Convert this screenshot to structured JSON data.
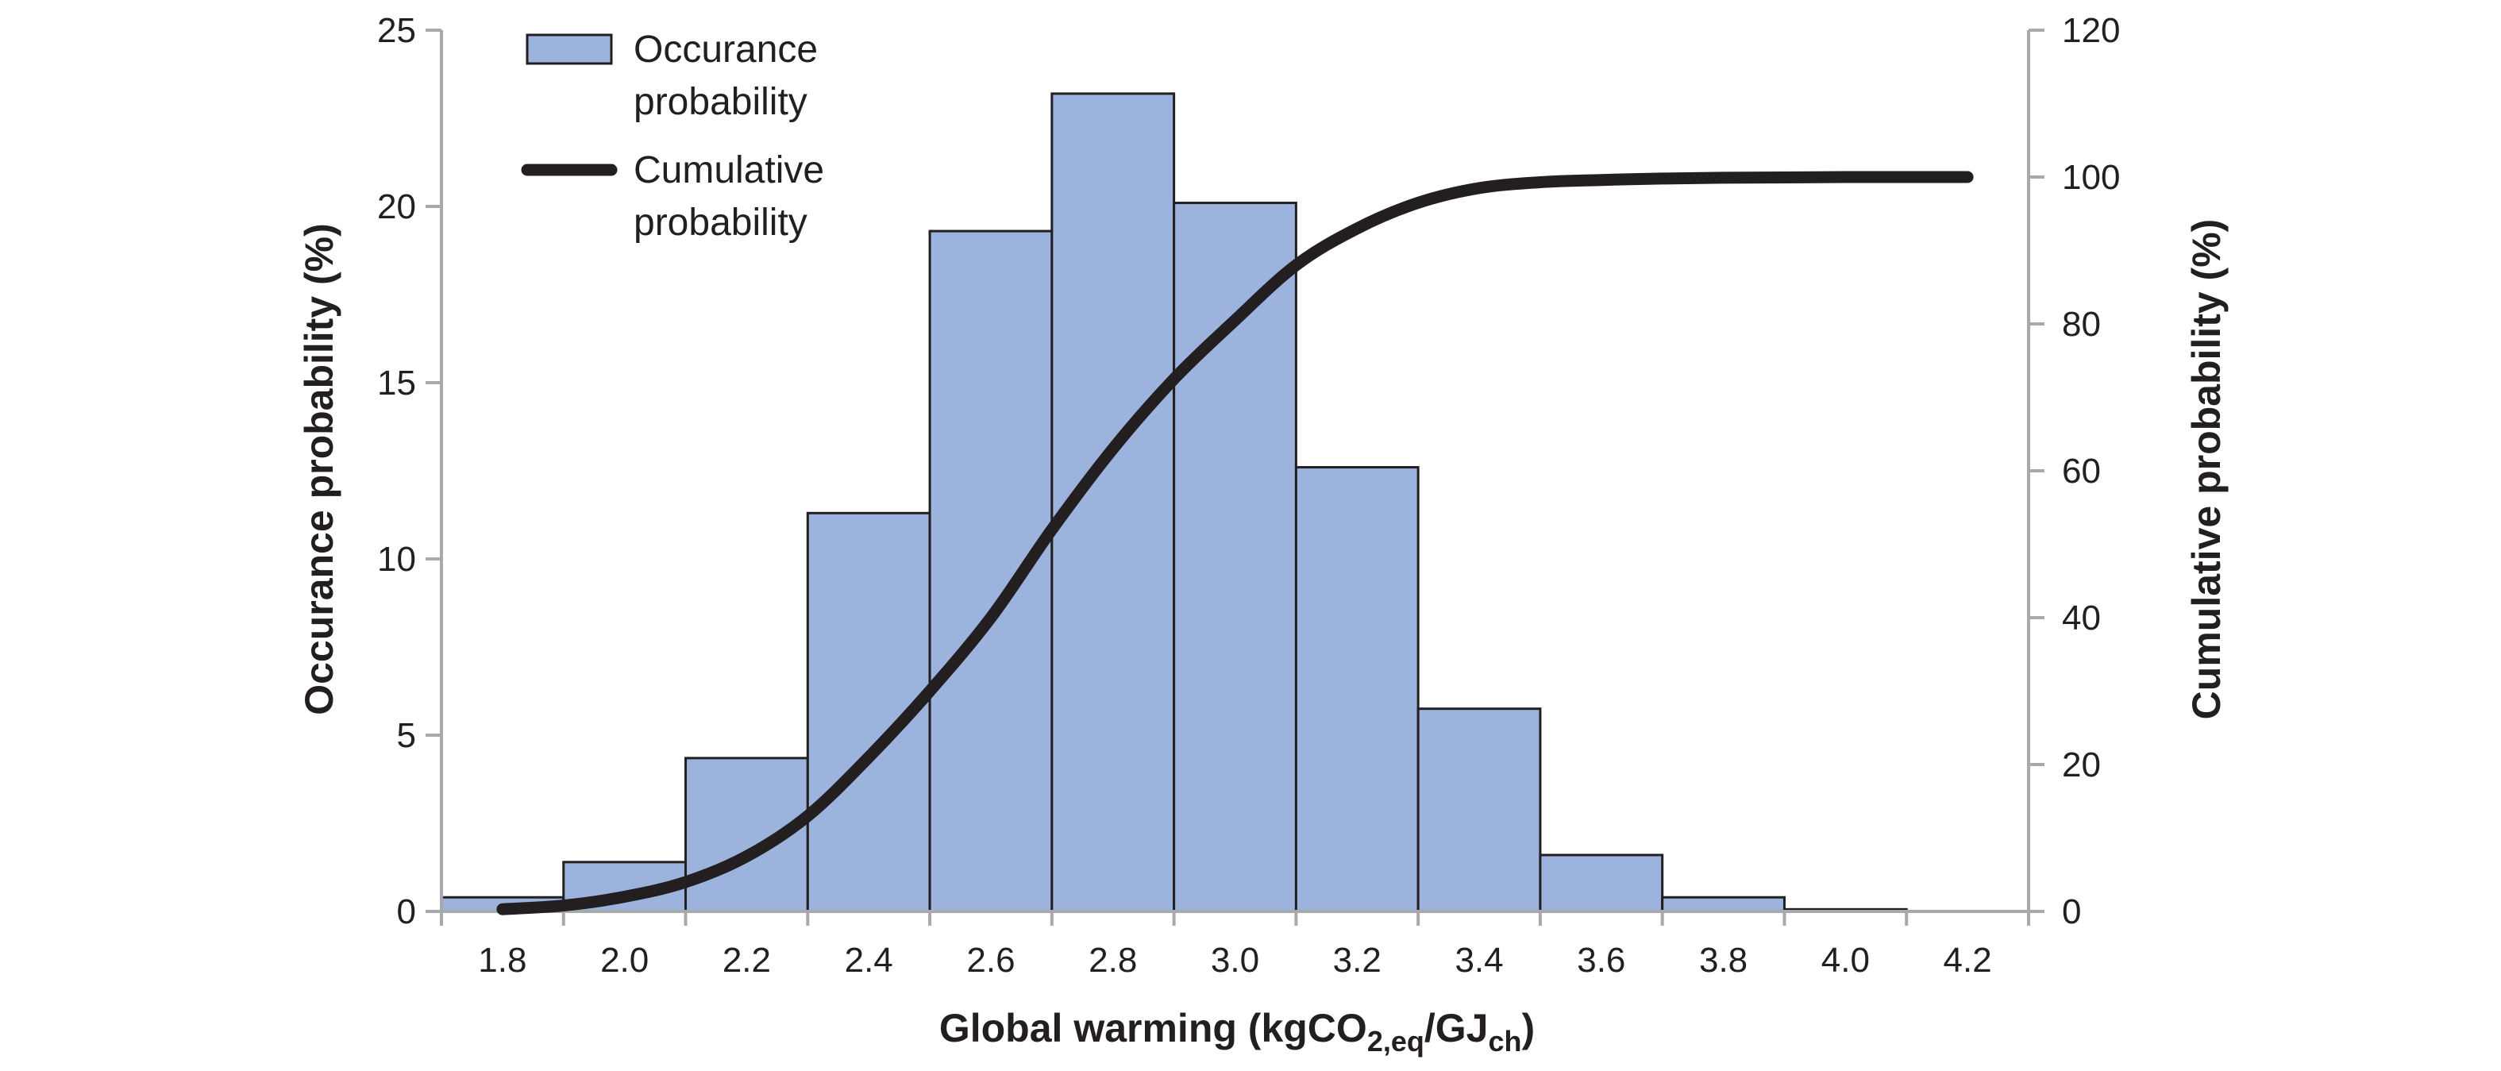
{
  "chart_data": {
    "type": "bar",
    "x_tick_labels": [
      "1.8",
      "2.0",
      "2.2",
      "2.4",
      "2.6",
      "2.8",
      "3.0",
      "3.2",
      "3.4",
      "3.6",
      "3.8",
      "4.0",
      "4.2"
    ],
    "bins": [
      {
        "from": 1.7,
        "to": 1.9,
        "value": 0.4
      },
      {
        "from": 1.9,
        "to": 2.1,
        "value": 1.4
      },
      {
        "from": 2.1,
        "to": 2.3,
        "value": 4.35
      },
      {
        "from": 2.3,
        "to": 2.5,
        "value": 11.3
      },
      {
        "from": 2.5,
        "to": 2.7,
        "value": 19.3
      },
      {
        "from": 2.7,
        "to": 2.9,
        "value": 23.2
      },
      {
        "from": 2.9,
        "to": 3.1,
        "value": 20.1
      },
      {
        "from": 3.1,
        "to": 3.3,
        "value": 12.6
      },
      {
        "from": 3.3,
        "to": 3.5,
        "value": 5.75
      },
      {
        "from": 3.5,
        "to": 3.7,
        "value": 1.6
      },
      {
        "from": 3.7,
        "to": 3.9,
        "value": 0.4
      },
      {
        "from": 3.9,
        "to": 4.1,
        "value": 0.06
      },
      {
        "from": 4.1,
        "to": 4.3,
        "value": 0.01
      }
    ],
    "cumulative": {
      "x": [
        1.8,
        1.9,
        2.0,
        2.1,
        2.2,
        2.3,
        2.4,
        2.5,
        2.6,
        2.7,
        2.8,
        2.9,
        3.0,
        3.1,
        3.2,
        3.3,
        3.4,
        3.5,
        3.6,
        3.7,
        3.8,
        3.9,
        4.0,
        4.1,
        4.2
      ],
      "y": [
        0.3,
        0.8,
        2.0,
        4.0,
        7.5,
        13.0,
        21.0,
        30.0,
        40.0,
        52.0,
        63.0,
        72.5,
        80.5,
        88.0,
        93.0,
        96.5,
        98.5,
        99.3,
        99.6,
        99.8,
        99.9,
        99.95,
        100,
        100,
        100
      ]
    },
    "series": [
      {
        "name": "Occurance probability",
        "color": "#9cb4dd",
        "edge": "#231f20",
        "axis": "left"
      },
      {
        "name": "Cumulative probability",
        "color": "#231f20",
        "axis": "right"
      }
    ],
    "legend": {
      "placement": "top-left",
      "bar_label_lines": [
        "Occurance",
        "probability"
      ],
      "line_label_lines": [
        "Cumulative",
        "probability"
      ]
    },
    "xlim": [
      1.7,
      4.3
    ],
    "ylim_left": [
      0,
      25
    ],
    "yticks_left": [
      "0",
      "5",
      "10",
      "15",
      "20",
      "25"
    ],
    "ylim_right": [
      0,
      120
    ],
    "yticks_right": [
      "0",
      "20",
      "40",
      "60",
      "80",
      "100",
      "120"
    ],
    "ylabel_left": "Occurance probability (%)",
    "ylabel_right": "Cumulative probability (%)",
    "xlabel": {
      "main": "Global warming (kgCO",
      "sub1": "2,eq",
      "mid": "/GJ",
      "sub2": "ch",
      "end": ")"
    },
    "grid": false
  }
}
